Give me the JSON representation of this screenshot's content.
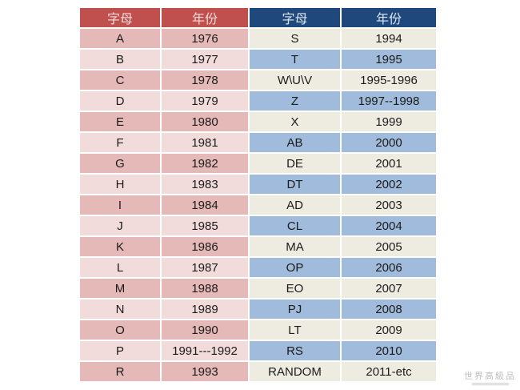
{
  "colors": {
    "left_header_bg": "#C0504D",
    "left_header_text": "#F2DCDB",
    "right_header_bg": "#1F497D",
    "right_header_text": "#DCE6F1",
    "row_pink_dark": "#E5B9B7",
    "row_pink_light": "#F2DCDB",
    "row_beige": "#EEECE1",
    "row_blue": "#A0BBDB",
    "cell_text": "#1B1B1B",
    "watermark_text": "#BFBFBF"
  },
  "left_table": {
    "headers": {
      "letter": "字母",
      "year": "年份"
    },
    "rows": [
      {
        "letter": "A",
        "year": "1976"
      },
      {
        "letter": "B",
        "year": "1977"
      },
      {
        "letter": "C",
        "year": "1978"
      },
      {
        "letter": "D",
        "year": "1979"
      },
      {
        "letter": "E",
        "year": "1980"
      },
      {
        "letter": "F",
        "year": "1981"
      },
      {
        "letter": "G",
        "year": "1982"
      },
      {
        "letter": "H",
        "year": "1983"
      },
      {
        "letter": "I",
        "year": "1984"
      },
      {
        "letter": "J",
        "year": "1985"
      },
      {
        "letter": "K",
        "year": "1986"
      },
      {
        "letter": "L",
        "year": "1987"
      },
      {
        "letter": "M",
        "year": "1988"
      },
      {
        "letter": "N",
        "year": "1989"
      },
      {
        "letter": "O",
        "year": "1990"
      },
      {
        "letter": "P",
        "year": "1991---1992"
      },
      {
        "letter": "R",
        "year": "1993"
      }
    ]
  },
  "right_table": {
    "headers": {
      "letter": "字母",
      "year": "年份"
    },
    "rows": [
      {
        "letter": "S",
        "year": "1994"
      },
      {
        "letter": "T",
        "year": "1995"
      },
      {
        "letter": "W\\U\\V",
        "year": "1995-1996"
      },
      {
        "letter": "Z",
        "year": "1997--1998"
      },
      {
        "letter": "X",
        "year": "1999"
      },
      {
        "letter": "AB",
        "year": "2000"
      },
      {
        "letter": "DE",
        "year": "2001"
      },
      {
        "letter": "DT",
        "year": "2002"
      },
      {
        "letter": "AD",
        "year": "2003"
      },
      {
        "letter": "CL",
        "year": "2004"
      },
      {
        "letter": "MA",
        "year": "2005"
      },
      {
        "letter": "OP",
        "year": "2006"
      },
      {
        "letter": "EO",
        "year": "2007"
      },
      {
        "letter": "PJ",
        "year": "2008"
      },
      {
        "letter": "LT",
        "year": "2009"
      },
      {
        "letter": "RS",
        "year": "2010"
      },
      {
        "letter": "RANDOM",
        "year": "2011-etc"
      }
    ]
  },
  "watermark": {
    "text": "世界高級品"
  },
  "chart_data": [
    {
      "type": "table",
      "title": "",
      "columns": [
        "字母",
        "年份"
      ],
      "rows": [
        [
          "A",
          "1976"
        ],
        [
          "B",
          "1977"
        ],
        [
          "C",
          "1978"
        ],
        [
          "D",
          "1979"
        ],
        [
          "E",
          "1980"
        ],
        [
          "F",
          "1981"
        ],
        [
          "G",
          "1982"
        ],
        [
          "H",
          "1983"
        ],
        [
          "I",
          "1984"
        ],
        [
          "J",
          "1985"
        ],
        [
          "K",
          "1986"
        ],
        [
          "L",
          "1987"
        ],
        [
          "M",
          "1988"
        ],
        [
          "N",
          "1989"
        ],
        [
          "O",
          "1990"
        ],
        [
          "P",
          "1991---1992"
        ],
        [
          "R",
          "1993"
        ]
      ]
    },
    {
      "type": "table",
      "title": "",
      "columns": [
        "字母",
        "年份"
      ],
      "rows": [
        [
          "S",
          "1994"
        ],
        [
          "T",
          "1995"
        ],
        [
          "W\\U\\V",
          "1995-1996"
        ],
        [
          "Z",
          "1997--1998"
        ],
        [
          "X",
          "1999"
        ],
        [
          "AB",
          "2000"
        ],
        [
          "DE",
          "2001"
        ],
        [
          "DT",
          "2002"
        ],
        [
          "AD",
          "2003"
        ],
        [
          "CL",
          "2004"
        ],
        [
          "MA",
          "2005"
        ],
        [
          "OP",
          "2006"
        ],
        [
          "EO",
          "2007"
        ],
        [
          "PJ",
          "2008"
        ],
        [
          "LT",
          "2009"
        ],
        [
          "RS",
          "2010"
        ],
        [
          "RANDOM",
          "2011-etc"
        ]
      ]
    }
  ]
}
